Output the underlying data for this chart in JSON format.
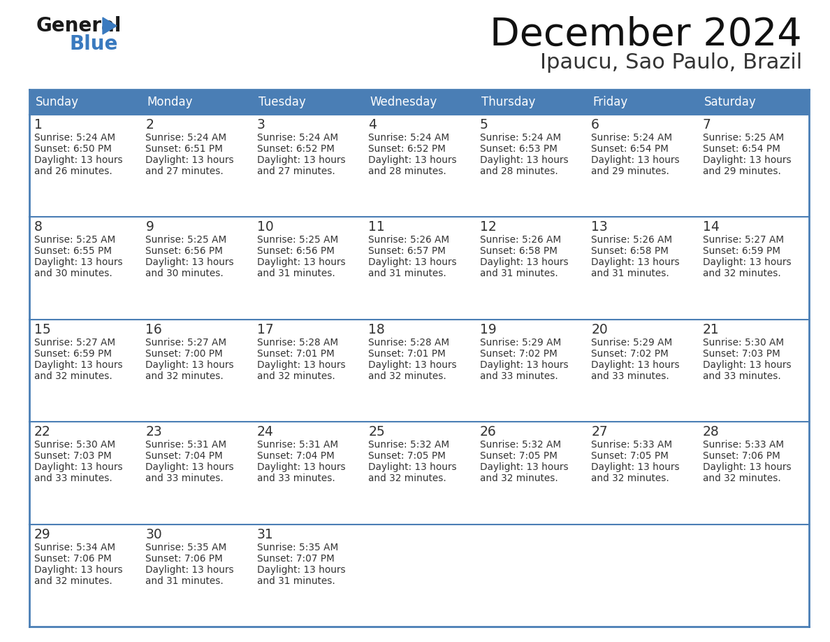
{
  "title": "December 2024",
  "subtitle": "Ipaucu, Sao Paulo, Brazil",
  "header_color": "#4a7eb5",
  "header_text_color": "#ffffff",
  "bg_color": "#ffffff",
  "border_color": "#4a7eb5",
  "text_color": "#333333",
  "day_num_color": "#222222",
  "days_of_week": [
    "Sunday",
    "Monday",
    "Tuesday",
    "Wednesday",
    "Thursday",
    "Friday",
    "Saturday"
  ],
  "calendar": [
    [
      {
        "day": 1,
        "sunrise": "5:24 AM",
        "sunset": "6:50 PM",
        "daylight": "13 hours and 26 minutes."
      },
      {
        "day": 2,
        "sunrise": "5:24 AM",
        "sunset": "6:51 PM",
        "daylight": "13 hours and 27 minutes."
      },
      {
        "day": 3,
        "sunrise": "5:24 AM",
        "sunset": "6:52 PM",
        "daylight": "13 hours and 27 minutes."
      },
      {
        "day": 4,
        "sunrise": "5:24 AM",
        "sunset": "6:52 PM",
        "daylight": "13 hours and 28 minutes."
      },
      {
        "day": 5,
        "sunrise": "5:24 AM",
        "sunset": "6:53 PM",
        "daylight": "13 hours and 28 minutes."
      },
      {
        "day": 6,
        "sunrise": "5:24 AM",
        "sunset": "6:54 PM",
        "daylight": "13 hours and 29 minutes."
      },
      {
        "day": 7,
        "sunrise": "5:25 AM",
        "sunset": "6:54 PM",
        "daylight": "13 hours and 29 minutes."
      }
    ],
    [
      {
        "day": 8,
        "sunrise": "5:25 AM",
        "sunset": "6:55 PM",
        "daylight": "13 hours and 30 minutes."
      },
      {
        "day": 9,
        "sunrise": "5:25 AM",
        "sunset": "6:56 PM",
        "daylight": "13 hours and 30 minutes."
      },
      {
        "day": 10,
        "sunrise": "5:25 AM",
        "sunset": "6:56 PM",
        "daylight": "13 hours and 31 minutes."
      },
      {
        "day": 11,
        "sunrise": "5:26 AM",
        "sunset": "6:57 PM",
        "daylight": "13 hours and 31 minutes."
      },
      {
        "day": 12,
        "sunrise": "5:26 AM",
        "sunset": "6:58 PM",
        "daylight": "13 hours and 31 minutes."
      },
      {
        "day": 13,
        "sunrise": "5:26 AM",
        "sunset": "6:58 PM",
        "daylight": "13 hours and 31 minutes."
      },
      {
        "day": 14,
        "sunrise": "5:27 AM",
        "sunset": "6:59 PM",
        "daylight": "13 hours and 32 minutes."
      }
    ],
    [
      {
        "day": 15,
        "sunrise": "5:27 AM",
        "sunset": "6:59 PM",
        "daylight": "13 hours and 32 minutes."
      },
      {
        "day": 16,
        "sunrise": "5:27 AM",
        "sunset": "7:00 PM",
        "daylight": "13 hours and 32 minutes."
      },
      {
        "day": 17,
        "sunrise": "5:28 AM",
        "sunset": "7:01 PM",
        "daylight": "13 hours and 32 minutes."
      },
      {
        "day": 18,
        "sunrise": "5:28 AM",
        "sunset": "7:01 PM",
        "daylight": "13 hours and 32 minutes."
      },
      {
        "day": 19,
        "sunrise": "5:29 AM",
        "sunset": "7:02 PM",
        "daylight": "13 hours and 33 minutes."
      },
      {
        "day": 20,
        "sunrise": "5:29 AM",
        "sunset": "7:02 PM",
        "daylight": "13 hours and 33 minutes."
      },
      {
        "day": 21,
        "sunrise": "5:30 AM",
        "sunset": "7:03 PM",
        "daylight": "13 hours and 33 minutes."
      }
    ],
    [
      {
        "day": 22,
        "sunrise": "5:30 AM",
        "sunset": "7:03 PM",
        "daylight": "13 hours and 33 minutes."
      },
      {
        "day": 23,
        "sunrise": "5:31 AM",
        "sunset": "7:04 PM",
        "daylight": "13 hours and 33 minutes."
      },
      {
        "day": 24,
        "sunrise": "5:31 AM",
        "sunset": "7:04 PM",
        "daylight": "13 hours and 33 minutes."
      },
      {
        "day": 25,
        "sunrise": "5:32 AM",
        "sunset": "7:05 PM",
        "daylight": "13 hours and 32 minutes."
      },
      {
        "day": 26,
        "sunrise": "5:32 AM",
        "sunset": "7:05 PM",
        "daylight": "13 hours and 32 minutes."
      },
      {
        "day": 27,
        "sunrise": "5:33 AM",
        "sunset": "7:05 PM",
        "daylight": "13 hours and 32 minutes."
      },
      {
        "day": 28,
        "sunrise": "5:33 AM",
        "sunset": "7:06 PM",
        "daylight": "13 hours and 32 minutes."
      }
    ],
    [
      {
        "day": 29,
        "sunrise": "5:34 AM",
        "sunset": "7:06 PM",
        "daylight": "13 hours and 32 minutes."
      },
      {
        "day": 30,
        "sunrise": "5:35 AM",
        "sunset": "7:06 PM",
        "daylight": "13 hours and 31 minutes."
      },
      {
        "day": 31,
        "sunrise": "5:35 AM",
        "sunset": "7:07 PM",
        "daylight": "13 hours and 31 minutes."
      },
      null,
      null,
      null,
      null
    ]
  ]
}
